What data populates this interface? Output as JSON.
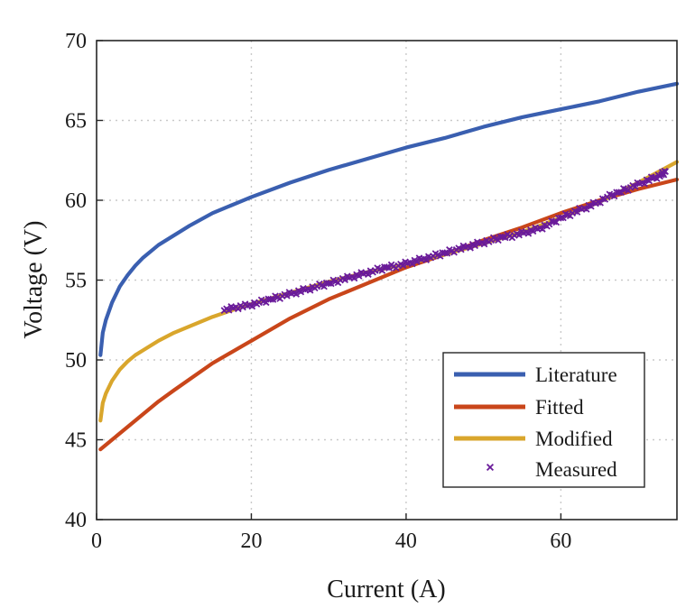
{
  "chart_data": {
    "type": "line",
    "xlabel": "Current (A)",
    "ylabel": "Voltage (V)",
    "xlim": [
      0,
      75
    ],
    "ylim": [
      40,
      70
    ],
    "xticks": [
      0,
      20,
      40,
      60
    ],
    "yticks": [
      40,
      45,
      50,
      55,
      60,
      65,
      70
    ],
    "grid": true,
    "legend_position": "bottom-right",
    "series": [
      {
        "name": "Literature",
        "kind": "line",
        "color": "#3a5fb0",
        "points": [
          [
            0.5,
            50.3
          ],
          [
            0.8,
            51.7
          ],
          [
            1.2,
            52.5
          ],
          [
            2,
            53.6
          ],
          [
            3,
            54.6
          ],
          [
            4,
            55.3
          ],
          [
            5,
            55.9
          ],
          [
            6,
            56.4
          ],
          [
            8,
            57.2
          ],
          [
            10,
            57.8
          ],
          [
            12,
            58.4
          ],
          [
            15,
            59.2
          ],
          [
            18,
            59.8
          ],
          [
            20,
            60.2
          ],
          [
            25,
            61.1
          ],
          [
            30,
            61.9
          ],
          [
            35,
            62.6
          ],
          [
            40,
            63.3
          ],
          [
            45,
            63.9
          ],
          [
            50,
            64.6
          ],
          [
            55,
            65.2
          ],
          [
            60,
            65.7
          ],
          [
            65,
            66.2
          ],
          [
            70,
            66.8
          ],
          [
            75,
            67.3
          ]
        ]
      },
      {
        "name": "Fitted",
        "kind": "line",
        "color": "#c9461a",
        "points": [
          [
            0.5,
            44.4
          ],
          [
            2,
            45.0
          ],
          [
            5,
            46.2
          ],
          [
            8,
            47.4
          ],
          [
            10,
            48.1
          ],
          [
            15,
            49.8
          ],
          [
            20,
            51.2
          ],
          [
            25,
            52.6
          ],
          [
            30,
            53.8
          ],
          [
            35,
            54.8
          ],
          [
            40,
            55.8
          ],
          [
            45,
            56.6
          ],
          [
            50,
            57.5
          ],
          [
            55,
            58.3
          ],
          [
            60,
            59.2
          ],
          [
            65,
            60.0
          ],
          [
            70,
            60.7
          ],
          [
            75,
            61.3
          ]
        ]
      },
      {
        "name": "Modified",
        "kind": "line",
        "color": "#d9a62c",
        "points": [
          [
            0.5,
            46.2
          ],
          [
            0.8,
            47.3
          ],
          [
            1.2,
            47.9
          ],
          [
            2,
            48.7
          ],
          [
            3,
            49.4
          ],
          [
            4,
            49.9
          ],
          [
            5,
            50.3
          ],
          [
            6,
            50.6
          ],
          [
            8,
            51.2
          ],
          [
            10,
            51.7
          ],
          [
            12,
            52.1
          ],
          [
            15,
            52.7
          ],
          [
            18,
            53.2
          ],
          [
            20,
            53.5
          ],
          [
            25,
            54.2
          ],
          [
            30,
            54.9
          ],
          [
            35,
            55.5
          ],
          [
            40,
            56.0
          ],
          [
            45,
            56.6
          ],
          [
            50,
            57.3
          ],
          [
            55,
            58.0
          ],
          [
            60,
            58.9
          ],
          [
            65,
            59.9
          ],
          [
            70,
            61.1
          ],
          [
            75,
            62.4
          ]
        ]
      },
      {
        "name": "Measured",
        "kind": "scatter",
        "color": "#6a1b9a",
        "marker": "x",
        "x_range": [
          16.5,
          73.5
        ],
        "points": [
          [
            16.5,
            53.1
          ],
          [
            18,
            53.3
          ],
          [
            19.5,
            53.4
          ],
          [
            21,
            53.6
          ],
          [
            22.5,
            53.8
          ],
          [
            24,
            54.0
          ],
          [
            25.5,
            54.2
          ],
          [
            27,
            54.4
          ],
          [
            28.5,
            54.6
          ],
          [
            30,
            54.8
          ],
          [
            31.5,
            55.0
          ],
          [
            33,
            55.2
          ],
          [
            34.5,
            55.4
          ],
          [
            36,
            55.6
          ],
          [
            37.5,
            55.8
          ],
          [
            39,
            55.9
          ],
          [
            40.5,
            56.1
          ],
          [
            42,
            56.3
          ],
          [
            43.5,
            56.5
          ],
          [
            45,
            56.7
          ],
          [
            46.5,
            56.9
          ],
          [
            48,
            57.1
          ],
          [
            49.5,
            57.3
          ],
          [
            51,
            57.5
          ],
          [
            52.5,
            57.7
          ],
          [
            54,
            57.8
          ],
          [
            55.5,
            58.0
          ],
          [
            57,
            58.2
          ],
          [
            58.5,
            58.5
          ],
          [
            60,
            58.9
          ],
          [
            61.5,
            59.2
          ],
          [
            63,
            59.5
          ],
          [
            64.5,
            59.8
          ],
          [
            66,
            60.2
          ],
          [
            67.5,
            60.5
          ],
          [
            69,
            60.8
          ],
          [
            70.5,
            61.1
          ],
          [
            72,
            61.4
          ],
          [
            73,
            61.6
          ],
          [
            73.5,
            61.8
          ]
        ]
      }
    ]
  }
}
